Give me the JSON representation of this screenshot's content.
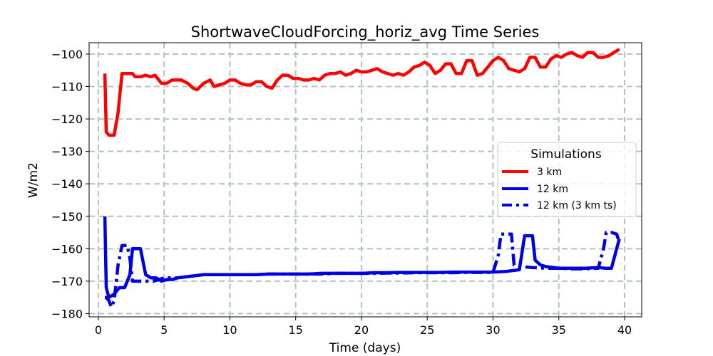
{
  "chart_data": {
    "type": "line",
    "title": "ShortwaveCloudForcing_horiz_avg Time Series",
    "xlabel": "Time (days)",
    "ylabel": "W/m2",
    "xlim": [
      -0.7,
      41.3
    ],
    "ylim": [
      -181,
      -96.5
    ],
    "xticks": [
      0,
      5,
      10,
      15,
      20,
      25,
      30,
      35,
      40
    ],
    "yticks": [
      -180,
      -170,
      -160,
      -150,
      -140,
      -130,
      -120,
      -110,
      -100
    ],
    "xtick_labels": [
      "0",
      "5",
      "10",
      "15",
      "20",
      "25",
      "30",
      "35",
      "40"
    ],
    "ytick_labels": [
      "−180",
      "−170",
      "−160",
      "−150",
      "−140",
      "−130",
      "−120",
      "−110",
      "−100"
    ],
    "grid": true,
    "legend": {
      "title": "Simulations",
      "placement": "center-right",
      "entries": [
        "3 km",
        "12 km",
        "12 km (3 km ts)"
      ]
    },
    "series": [
      {
        "name": "3 km",
        "color": "#ff0000",
        "dash": "solid",
        "x": [
          0.5,
          0.6,
          0.8,
          1.2,
          1.5,
          1.8,
          2.0,
          2.6,
          2.8,
          3.2,
          3.6,
          4.0,
          4.3,
          4.8,
          5.2,
          5.6,
          6.0,
          6.3,
          6.8,
          7.2,
          7.5,
          8.0,
          8.5,
          8.8,
          9.2,
          9.6,
          10.0,
          10.4,
          10.8,
          11.2,
          11.6,
          12.0,
          12.4,
          12.8,
          13.2,
          13.6,
          14.0,
          14.4,
          14.8,
          15.2,
          15.6,
          16.0,
          16.4,
          16.8,
          17.2,
          17.6,
          18.0,
          18.4,
          18.8,
          19.2,
          19.6,
          20.0,
          20.4,
          20.8,
          21.2,
          21.6,
          22.0,
          22.4,
          22.8,
          23.2,
          23.6,
          24.0,
          24.4,
          24.8,
          25.2,
          25.6,
          26.0,
          26.4,
          26.8,
          27.2,
          27.6,
          28.0,
          28.4,
          28.8,
          29.2,
          29.6,
          30.0,
          30.4,
          30.8,
          31.2,
          31.6,
          32.0,
          32.4,
          32.8,
          33.2,
          33.6,
          34.0,
          34.4,
          34.8,
          35.2,
          35.6,
          36.0,
          36.4,
          36.8,
          37.2,
          37.6,
          38.0,
          38.4,
          38.8,
          39.2,
          39.6
        ],
        "values": [
          -106,
          -124,
          -125,
          -125,
          -118,
          -106,
          -106,
          -106,
          -107,
          -107,
          -106.5,
          -107,
          -106.5,
          -109,
          -109,
          -108,
          -108,
          -108,
          -109,
          -110.5,
          -111,
          -109,
          -108,
          -110,
          -109.5,
          -109,
          -108,
          -108,
          -109,
          -109.5,
          -109.5,
          -108.5,
          -108.5,
          -110,
          -110.5,
          -108,
          -106.5,
          -106.5,
          -107.5,
          -107.5,
          -108,
          -108,
          -107.5,
          -108,
          -106.5,
          -106,
          -106,
          -105.5,
          -106.5,
          -106,
          -105,
          -105.5,
          -105.5,
          -105,
          -104.5,
          -105.5,
          -106,
          -106.5,
          -106,
          -106.5,
          -105.5,
          -104,
          -103.5,
          -102.5,
          -103.5,
          -106,
          -105,
          -103,
          -103,
          -106,
          -106,
          -102,
          -102,
          -106.5,
          -106,
          -104,
          -102,
          -101,
          -102,
          -104.5,
          -105,
          -105.5,
          -104.5,
          -101,
          -101,
          -104,
          -104,
          -101.5,
          -100.5,
          -101,
          -100,
          -99.5,
          -100.5,
          -101,
          -99.5,
          -99.5,
          -101,
          -101,
          -100.5,
          -99.5,
          -98.5
        ]
      },
      {
        "name": "12 km",
        "color": "#0000e0",
        "dash": "solid",
        "x": [
          0.5,
          0.6,
          0.8,
          1.2,
          1.6,
          2.0,
          2.4,
          2.6,
          3.0,
          3.2,
          3.6,
          4.0,
          4.4,
          4.8,
          5.2,
          5.6,
          6.0,
          7.0,
          8.0,
          9.0,
          10.0,
          11.0,
          12.0,
          13.0,
          14.0,
          15.0,
          16.0,
          17.0,
          18.0,
          19.0,
          20.0,
          21.0,
          22.0,
          23.0,
          24.0,
          25.0,
          26.0,
          27.0,
          28.0,
          29.0,
          30.0,
          31.0,
          32.0,
          32.4,
          32.6,
          33.0,
          33.2,
          33.6,
          34.0,
          34.6,
          35.0,
          36.0,
          37.0,
          38.0,
          38.5,
          39.0,
          39.4,
          39.6
        ],
        "values": [
          -150,
          -172,
          -175,
          -174,
          -172,
          -172,
          -168,
          -160,
          -160,
          -160,
          -168,
          -169,
          -169,
          -170,
          -169.5,
          -169.5,
          -169,
          -168.5,
          -168,
          -168,
          -168,
          -168,
          -168,
          -167.8,
          -167.8,
          -167.8,
          -167.8,
          -167.6,
          -167.6,
          -167.6,
          -167.6,
          -167.4,
          -167.4,
          -167.3,
          -167.3,
          -167.3,
          -167.3,
          -167.2,
          -167.2,
          -167.2,
          -167.2,
          -167,
          -166.5,
          -156,
          -156,
          -156,
          -163.5,
          -165,
          -165.5,
          -165.8,
          -166,
          -166,
          -166,
          -165.8,
          -166,
          -166,
          -160,
          -157
        ]
      },
      {
        "name": "12 km (3 km ts)",
        "color": "#0000e0",
        "dash": "dashed",
        "x": [
          0.5,
          0.6,
          0.8,
          1.0,
          1.2,
          1.5,
          1.8,
          2.2,
          2.4,
          2.6,
          3.0,
          3.4,
          3.8,
          4.2,
          4.6,
          5.0,
          6.0,
          7.0,
          8.0,
          9.0,
          10.0,
          11.0,
          12.0,
          13.0,
          14.0,
          15.0,
          16.0,
          17.0,
          18.0,
          19.0,
          20.0,
          21.0,
          22.0,
          23.0,
          24.0,
          25.0,
          26.0,
          27.0,
          28.0,
          29.0,
          30.0,
          30.4,
          30.6,
          31.0,
          31.4,
          31.6,
          32.0,
          33.0,
          34.0,
          35.0,
          36.0,
          37.0,
          38.0,
          38.4,
          38.6,
          39.0,
          39.4,
          39.6
        ],
        "values": [
          -175,
          -175,
          -176,
          -178,
          -176,
          -165,
          -159,
          -159,
          -163,
          -170,
          -170,
          -170,
          -170,
          -170,
          -169.5,
          -169,
          -169,
          -168.5,
          -168,
          -168,
          -168,
          -168,
          -168,
          -167.8,
          -167.8,
          -167.8,
          -167.8,
          -167.8,
          -167.6,
          -167.6,
          -167.6,
          -167.6,
          -167.5,
          -167.5,
          -167.4,
          -167.4,
          -167.4,
          -167.4,
          -167.3,
          -167.3,
          -167.3,
          -162,
          -155.5,
          -155.5,
          -155.5,
          -165,
          -165.5,
          -165.8,
          -166,
          -166,
          -166.2,
          -166.2,
          -166,
          -160,
          -155,
          -155,
          -155.5,
          -158
        ]
      }
    ]
  }
}
